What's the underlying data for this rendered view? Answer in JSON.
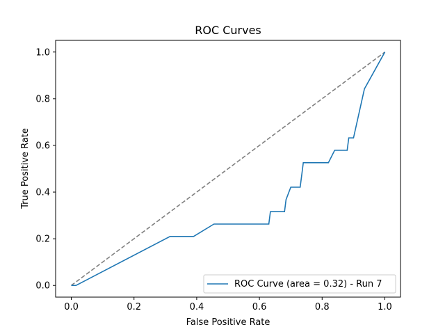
{
  "chart_data": {
    "type": "line",
    "title": "ROC Curves",
    "xlabel": "False Positive Rate",
    "ylabel": "True Positive Rate",
    "xlim": [
      -0.05,
      1.05
    ],
    "ylim": [
      -0.05,
      1.05
    ],
    "xticks": [
      0.0,
      0.2,
      0.4,
      0.6,
      0.8,
      1.0
    ],
    "yticks": [
      0.0,
      0.2,
      0.4,
      0.6,
      0.8,
      1.0
    ],
    "xtick_labels": [
      "0.0",
      "0.2",
      "0.4",
      "0.6",
      "0.8",
      "1.0"
    ],
    "ytick_labels": [
      "0.0",
      "0.2",
      "0.4",
      "0.6",
      "0.8",
      "1.0"
    ],
    "grid": false,
    "legend_position": "lower right",
    "series": [
      {
        "name": "ROC Curve (area = 0.32) - Run 7",
        "color": "#1f77b4",
        "style": "solid",
        "x": [
          0.0,
          0.015,
          0.315,
          0.39,
          0.455,
          0.63,
          0.635,
          0.68,
          0.685,
          0.7,
          0.73,
          0.735,
          0.74,
          0.82,
          0.84,
          0.88,
          0.885,
          0.9,
          0.935,
          1.0
        ],
        "y": [
          0.0,
          0.0,
          0.21,
          0.21,
          0.263,
          0.263,
          0.316,
          0.316,
          0.368,
          0.421,
          0.421,
          0.474,
          0.526,
          0.526,
          0.579,
          0.579,
          0.632,
          0.632,
          0.842,
          1.0
        ]
      },
      {
        "color": "#808080",
        "style": "dashed",
        "x": [
          0.0,
          1.0
        ],
        "y": [
          0.0,
          1.0
        ]
      }
    ]
  }
}
